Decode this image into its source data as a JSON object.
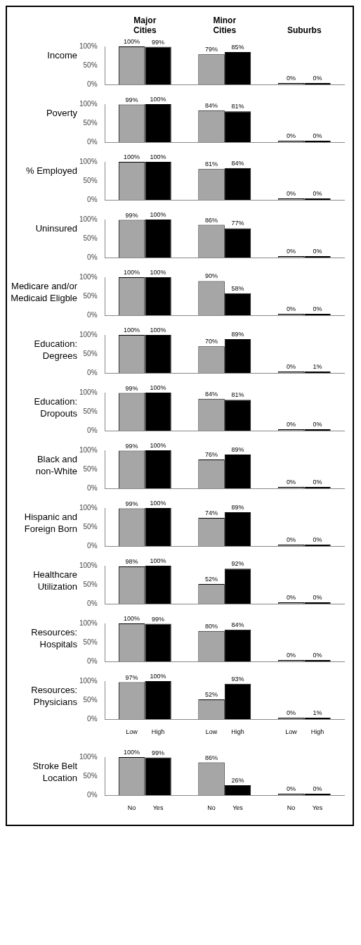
{
  "chart_data": [
    {
      "type": "bar",
      "title": "Income",
      "categories": [
        "Major Cities",
        "Minor Cities",
        "Suburbs"
      ],
      "ylim": [
        0,
        100
      ],
      "yticks": [
        {
          "value": 0,
          "label": "0%"
        },
        {
          "value": 50,
          "label": "50%"
        },
        {
          "value": 100,
          "label": "100%"
        }
      ],
      "series": [
        {
          "color": "#a6a6a6",
          "values": [
            100,
            79,
            0
          ],
          "value_labels": [
            "100%",
            "79%",
            "0%"
          ]
        },
        {
          "color": "#000000",
          "values": [
            99,
            85,
            0
          ],
          "value_labels": [
            "99%",
            "85%",
            "0%"
          ]
        }
      ]
    },
    {
      "type": "bar",
      "title": "Poverty",
      "categories": [
        null,
        null,
        null
      ],
      "tick_labels": "y",
      "ylim": [
        0,
        100
      ],
      "yticks": [
        {
          "value": 0,
          "label": "0%"
        },
        {
          "value": 50,
          "label": "50%"
        },
        {
          "value": 100,
          "label": "100%"
        }
      ],
      "series": [
        {
          "color": "#a6a6a6",
          "values": [
            99,
            84,
            0
          ],
          "value_labels": [
            "99%",
            "84%",
            "0%"
          ]
        },
        {
          "color": "#000000",
          "values": [
            100,
            81,
            0
          ],
          "value_labels": [
            "100%",
            "81%",
            "0%"
          ]
        }
      ]
    },
    {
      "type": "bar",
      "title": "% Employed",
      "categories": [
        null,
        null,
        null
      ],
      "tick_labels": "y",
      "ylim": [
        0,
        100
      ],
      "yticks": [
        {
          "value": 0,
          "label": "0%"
        },
        {
          "value": 50,
          "label": "50%"
        },
        {
          "value": 100,
          "label": "100%"
        }
      ],
      "series": [
        {
          "color": "#a6a6a6",
          "values": [
            100,
            81,
            0
          ],
          "value_labels": [
            "100%",
            "81%",
            "0%"
          ]
        },
        {
          "color": "#000000",
          "values": [
            100,
            84,
            0
          ],
          "value_labels": [
            "100%",
            "84%",
            "0%"
          ]
        }
      ]
    },
    {
      "type": "bar",
      "title": "Uninsured",
      "categories": [
        null,
        null,
        null
      ],
      "tick_labels": "y",
      "ylim": [
        0,
        100
      ],
      "yticks": [
        {
          "value": 0,
          "label": "0%"
        },
        {
          "value": 50,
          "label": "50%"
        },
        {
          "value": 100,
          "label": "100%"
        }
      ],
      "series": [
        {
          "color": "#a6a6a6",
          "values": [
            99,
            86,
            0
          ],
          "value_labels": [
            "99%",
            "86%",
            "0%"
          ]
        },
        {
          "color": "#000000",
          "values": [
            100,
            77,
            0
          ],
          "value_labels": [
            "100%",
            "77%",
            "0%"
          ]
        }
      ]
    },
    {
      "type": "bar",
      "title": "Medicare and/or\nMedicaid Eligble",
      "categories": [
        null,
        null,
        null
      ],
      "tick_labels": "y",
      "ylim": [
        0,
        100
      ],
      "yticks": [
        {
          "value": 0,
          "label": "0%"
        },
        {
          "value": 50,
          "label": "50%"
        },
        {
          "value": 100,
          "label": "100%"
        }
      ],
      "series": [
        {
          "color": "#a6a6a6",
          "values": [
            100,
            90,
            0
          ],
          "value_labels": [
            "100%",
            "90%",
            "0%"
          ]
        },
        {
          "color": "#000000",
          "values": [
            100,
            58,
            0
          ],
          "value_labels": [
            "100%",
            "58%",
            "0%"
          ]
        }
      ]
    },
    {
      "type": "bar",
      "title": "Education:\nDegrees",
      "categories": [
        null,
        null,
        null
      ],
      "tick_labels": "y",
      "ylim": [
        0,
        100
      ],
      "yticks": [
        {
          "value": 0,
          "label": "0%"
        },
        {
          "value": 50,
          "label": "50%"
        },
        {
          "value": 100,
          "label": "100%"
        }
      ],
      "series": [
        {
          "color": "#a6a6a6",
          "values": [
            100,
            70,
            0
          ],
          "value_labels": [
            "100%",
            "70%",
            "0%"
          ]
        },
        {
          "color": "#000000",
          "values": [
            100,
            89,
            1
          ],
          "value_labels": [
            "100%",
            "89%",
            "1%"
          ]
        }
      ]
    },
    {
      "type": "bar",
      "title": "Education:\nDropouts",
      "categories": [
        null,
        null,
        null
      ],
      "tick_labels": "y",
      "ylim": [
        0,
        100
      ],
      "yticks": [
        {
          "value": 0,
          "label": "0%"
        },
        {
          "value": 50,
          "label": "50%"
        },
        {
          "value": 100,
          "label": "100%"
        }
      ],
      "series": [
        {
          "color": "#a6a6a6",
          "values": [
            99,
            84,
            0
          ],
          "value_labels": [
            "99%",
            "84%",
            "0%"
          ]
        },
        {
          "color": "#000000",
          "values": [
            100,
            81,
            0
          ],
          "value_labels": [
            "100%",
            "81%",
            "0%"
          ]
        }
      ]
    },
    {
      "type": "bar",
      "title": "Black and\nnon-White",
      "categories": [
        null,
        null,
        null
      ],
      "tick_labels": "y",
      "ylim": [
        0,
        100
      ],
      "yticks": [
        {
          "value": 0,
          "label": "0%"
        },
        {
          "value": 50,
          "label": "50%"
        },
        {
          "value": 100,
          "label": "100%"
        }
      ],
      "series": [
        {
          "color": "#a6a6a6",
          "values": [
            99,
            76,
            0
          ],
          "value_labels": [
            "99%",
            "76%",
            "0%"
          ]
        },
        {
          "color": "#000000",
          "values": [
            100,
            89,
            0
          ],
          "value_labels": [
            "100%",
            "89%",
            "0%"
          ]
        }
      ]
    },
    {
      "type": "bar",
      "title": "Hispanic and\nForeign Born",
      "categories": [
        null,
        null,
        null
      ],
      "tick_labels": "y",
      "ylim": [
        0,
        100
      ],
      "yticks": [
        {
          "value": 0,
          "label": "0%"
        },
        {
          "value": 50,
          "label": "50%"
        },
        {
          "value": 100,
          "label": "100%"
        }
      ],
      "series": [
        {
          "color": "#a6a6a6",
          "values": [
            99,
            74,
            0
          ],
          "value_labels": [
            "99%",
            "74%",
            "0%"
          ]
        },
        {
          "color": "#000000",
          "values": [
            100,
            89,
            0
          ],
          "value_labels": [
            "100%",
            "89%",
            "0%"
          ]
        }
      ]
    },
    {
      "type": "bar",
      "title": "Healthcare\nUtilization",
      "categories": [
        null,
        null,
        null
      ],
      "tick_labels": "y",
      "ylim": [
        0,
        100
      ],
      "yticks": [
        {
          "value": 0,
          "label": "0%"
        },
        {
          "value": 50,
          "label": "50%"
        },
        {
          "value": 100,
          "label": "100%"
        }
      ],
      "series": [
        {
          "color": "#a6a6a6",
          "values": [
            98,
            52,
            0
          ],
          "value_labels": [
            "98%",
            "52%",
            "0%"
          ]
        },
        {
          "color": "#000000",
          "values": [
            100,
            92,
            0
          ],
          "value_labels": [
            "100%",
            "92%",
            "0%"
          ]
        }
      ]
    },
    {
      "type": "bar",
      "title": "Resources:\nHospitals",
      "categories": [
        null,
        null,
        null
      ],
      "tick_labels": "y",
      "ylim": [
        0,
        100
      ],
      "yticks": [
        {
          "value": 0,
          "label": "0%"
        },
        {
          "value": 50,
          "label": "50%"
        },
        {
          "value": 100,
          "label": "100%"
        }
      ],
      "series": [
        {
          "color": "#a6a6a6",
          "values": [
            100,
            80,
            0
          ],
          "value_labels": [
            "100%",
            "80%",
            "0%"
          ]
        },
        {
          "color": "#000000",
          "values": [
            99,
            84,
            0
          ],
          "value_labels": [
            "99%",
            "84%",
            "0%"
          ]
        }
      ]
    },
    {
      "type": "bar",
      "title": "Resources:\nPhysicians",
      "categories": [
        null,
        null,
        null
      ],
      "tick_labels": "y",
      "ylim": [
        0,
        100
      ],
      "yticks": [
        {
          "value": 0,
          "label": "0%"
        },
        {
          "value": 50,
          "label": "50%"
        },
        {
          "value": 100,
          "label": "100%"
        }
      ],
      "series": [
        {
          "name": "Low",
          "color": "#a6a6a6",
          "values": [
            97,
            52,
            0
          ],
          "value_labels": [
            "97%",
            "52%",
            "0%"
          ]
        },
        {
          "name": "High",
          "color": "#000000",
          "values": [
            100,
            93,
            1
          ],
          "value_labels": [
            "100%",
            "93%",
            "1%"
          ]
        }
      ]
    },
    {
      "type": "bar",
      "title": "Stroke Belt\nLocation",
      "categories": [
        null,
        null,
        null
      ],
      "tick_labels": "y",
      "ylim": [
        0,
        100
      ],
      "yticks": [
        {
          "value": 0,
          "label": "0%"
        },
        {
          "value": 50,
          "label": "50%"
        },
        {
          "value": 100,
          "label": "100%"
        }
      ],
      "series": [
        {
          "name": "No",
          "color": "#a6a6a6",
          "values": [
            100,
            86,
            0
          ],
          "value_labels": [
            "100%",
            "86%",
            "0%"
          ]
        },
        {
          "name": "Yes",
          "color": "#000000",
          "values": [
            99,
            26,
            0
          ],
          "value_labels": [
            "99%",
            "26%",
            "0%"
          ]
        }
      ]
    }
  ]
}
